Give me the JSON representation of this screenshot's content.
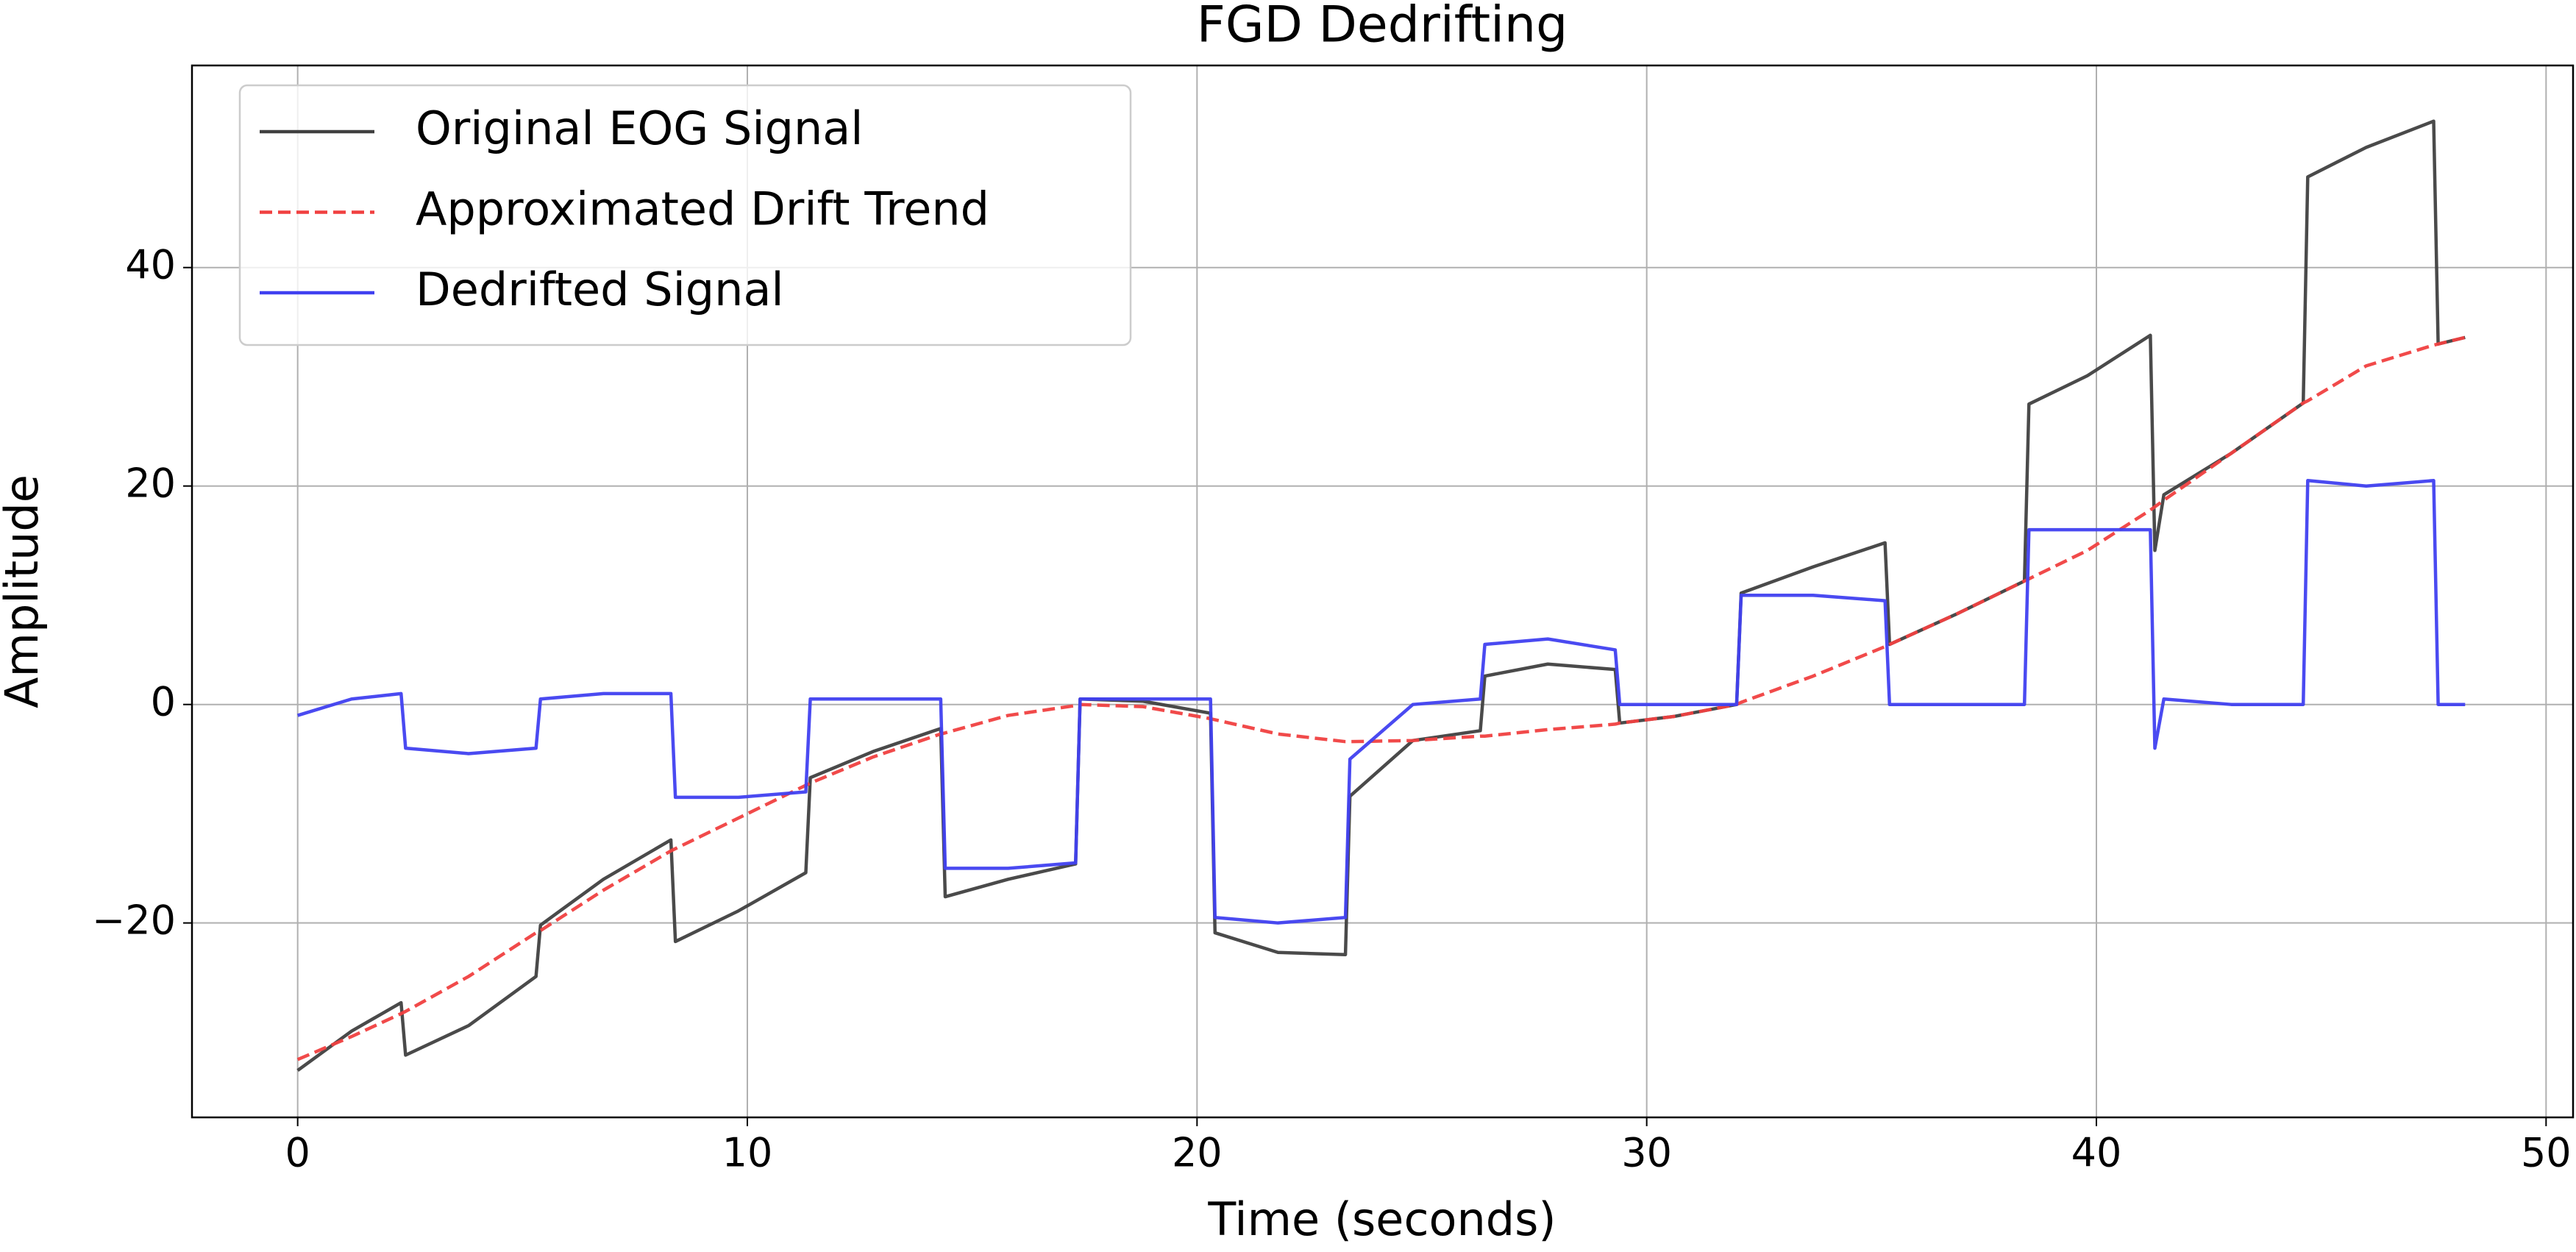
{
  "chart_data": {
    "type": "line",
    "title": "FGD Dedrifting",
    "x_label": "Time (seconds)",
    "y_label": "Amplitude",
    "x": [
      0,
      1.2,
      2.3,
      2.4,
      3.8,
      5.3,
      5.4,
      6.8,
      8.3,
      8.4,
      9.8,
      11.3,
      11.4,
      12.8,
      14.3,
      14.4,
      15.8,
      17.3,
      17.4,
      18.8,
      20.3,
      20.4,
      21.8,
      23.3,
      23.4,
      24.8,
      26.3,
      26.4,
      27.8,
      29.3,
      29.4,
      30.6,
      32.0,
      32.1,
      33.7,
      35.3,
      35.4,
      36.9,
      38.4,
      38.5,
      39.8,
      41.2,
      41.3,
      41.5,
      43.0,
      44.6,
      44.7,
      46.0,
      47.5,
      47.6,
      48.2
    ],
    "series": [
      {
        "name": "Original EOG Signal",
        "color": "#404040",
        "dash": false,
        "values": [
          -33.5,
          -29.9,
          -27.3,
          -32.1,
          -29.4,
          -24.9,
          -20.2,
          -16,
          -12.4,
          -21.7,
          -18.9,
          -15.4,
          -6.7,
          -4.3,
          -2.2,
          -17.6,
          -16,
          -14.6,
          0.5,
          0.3,
          -0.8,
          -20.9,
          -22.7,
          -22.9,
          -8.4,
          -3.3,
          -2.4,
          2.6,
          3.7,
          3.2,
          -1.7,
          -1.1,
          0,
          10.2,
          12.6,
          14.8,
          5.5,
          8.3,
          11.3,
          27.5,
          30.1,
          33.8,
          14.1,
          19.2,
          23,
          27.6,
          48.3,
          51,
          53.4,
          33,
          33.6
        ]
      },
      {
        "name": "Approximated Drift Trend",
        "color": "#f04040",
        "dash": true,
        "values": [
          -32.5,
          -30.4,
          -28.3,
          -28.1,
          -24.9,
          -20.9,
          -20.7,
          -17,
          -13.4,
          -13.2,
          -10.4,
          -7.4,
          -7.2,
          -4.8,
          -2.7,
          -2.6,
          -1,
          -0.1,
          0,
          -0.2,
          -1.3,
          -1.4,
          -2.7,
          -3.4,
          -3.4,
          -3.3,
          -2.9,
          -2.9,
          -2.3,
          -1.8,
          -1.7,
          -1.1,
          0,
          0.2,
          2.6,
          5.3,
          5.5,
          8.3,
          11.3,
          11.5,
          14.1,
          17.8,
          18.1,
          18.7,
          23,
          27.6,
          27.8,
          31,
          32.9,
          33,
          33.6
        ]
      },
      {
        "name": "Dedrifted Signal",
        "color": "#4040f0",
        "dash": false,
        "values": [
          -1,
          0.5,
          1,
          -4,
          -4.5,
          -4,
          0.5,
          1,
          1,
          -8.5,
          -8.5,
          -8,
          0.5,
          0.5,
          0.5,
          -15,
          -15,
          -14.5,
          0.5,
          0.5,
          0.5,
          -19.5,
          -20,
          -19.5,
          -5,
          0,
          0.5,
          5.5,
          6,
          5,
          0,
          0,
          0,
          10,
          10,
          9.5,
          0,
          0,
          0,
          16,
          16,
          16,
          -4,
          0.5,
          0,
          0,
          20.5,
          20,
          20.5,
          0,
          0
        ]
      }
    ],
    "xlim": [
      -2.35,
      50.6
    ],
    "ylim": [
      -37.8,
      58.5
    ],
    "xticks": [
      0,
      10,
      20,
      30,
      40,
      50
    ],
    "yticks": [
      {
        "value": -20,
        "label": "−20"
      },
      0,
      20,
      40
    ],
    "grid": true,
    "legend": "upper left"
  }
}
